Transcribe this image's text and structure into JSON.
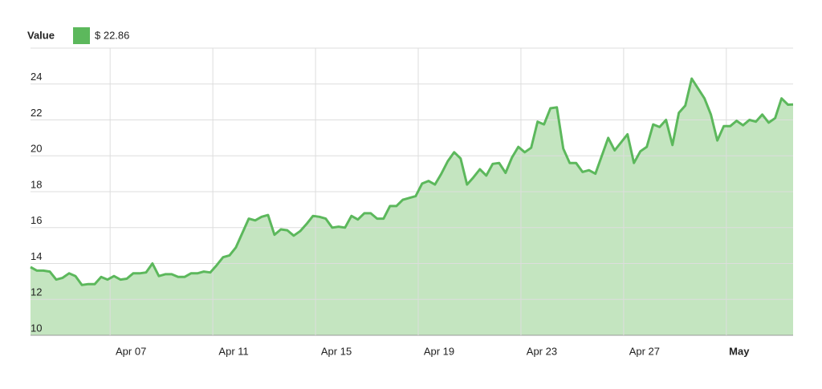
{
  "chart_data": {
    "type": "area",
    "legend_title": "Value",
    "latest_label": "$ 22.86",
    "series": [
      {
        "name": "Value",
        "color": "#5cb85c",
        "fill": "#c4e5c0",
        "values": [
          13.8,
          13.6,
          13.6,
          13.55,
          13.1,
          13.2,
          13.45,
          13.3,
          12.8,
          12.85,
          12.85,
          13.25,
          13.1,
          13.3,
          13.1,
          13.15,
          13.45,
          13.45,
          13.5,
          14.0,
          13.3,
          13.4,
          13.4,
          13.25,
          13.25,
          13.45,
          13.45,
          13.55,
          13.5,
          13.9,
          14.35,
          14.45,
          14.9,
          15.7,
          16.5,
          16.4,
          16.6,
          16.7,
          15.6,
          15.9,
          15.85,
          15.55,
          15.8,
          16.2,
          16.65,
          16.6,
          16.5,
          16.0,
          16.05,
          16.0,
          16.65,
          16.45,
          16.8,
          16.8,
          16.5,
          16.5,
          17.2,
          17.2,
          17.55,
          17.65,
          17.75,
          18.45,
          18.6,
          18.4,
          19.0,
          19.7,
          20.2,
          19.85,
          18.4,
          18.8,
          19.25,
          18.9,
          19.55,
          19.6,
          19.05,
          19.9,
          20.5,
          20.2,
          20.45,
          21.9,
          21.75,
          22.65,
          22.7,
          20.4,
          19.6,
          19.6,
          19.1,
          19.2,
          19.0,
          20.0,
          21.0,
          20.3,
          20.75,
          21.2,
          19.6,
          20.25,
          20.5,
          21.75,
          21.6,
          22.0,
          20.6,
          22.4,
          22.8,
          24.3,
          23.75,
          23.2,
          22.3,
          20.85,
          21.65,
          21.65,
          21.95,
          21.7,
          22.0,
          21.9,
          22.3,
          21.85,
          22.1,
          23.2,
          22.85,
          22.86
        ]
      }
    ],
    "x": [
      3.9,
      4.15,
      4.4,
      4.65,
      4.9,
      5.15,
      5.4,
      5.65,
      5.9,
      6.15,
      6.4,
      6.65,
      6.9,
      7.15,
      7.4,
      7.65,
      7.9,
      8.15,
      8.4,
      8.65,
      8.9,
      9.15,
      9.4,
      9.65,
      9.9,
      10.15,
      10.4,
      10.65,
      10.9,
      11.15,
      11.4,
      11.65,
      11.9,
      12.15,
      12.4,
      12.65,
      12.9,
      13.15,
      13.4,
      13.65,
      13.9,
      14.15,
      14.4,
      14.65,
      14.9,
      15.15,
      15.4,
      15.65,
      15.9,
      16.15,
      16.4,
      16.65,
      16.9,
      17.15,
      17.4,
      17.65,
      17.9,
      18.15,
      18.4,
      18.65,
      18.9,
      19.15,
      19.4,
      19.65,
      19.9,
      20.15,
      20.4,
      20.65,
      20.9,
      21.15,
      21.4,
      21.65,
      21.9,
      22.15,
      22.4,
      22.65,
      22.9,
      23.15,
      23.4,
      23.65,
      23.9,
      24.15,
      24.4,
      24.65,
      24.9,
      25.15,
      25.4,
      25.65,
      25.9,
      26.15,
      26.4,
      26.65,
      26.9,
      27.15,
      27.4,
      27.65,
      27.9,
      28.15,
      28.4,
      28.65,
      28.9,
      29.15,
      29.4,
      29.65,
      29.9,
      30.15,
      30.4,
      30.65,
      30.9,
      31.15,
      31.4,
      31.65,
      31.9,
      32.15,
      32.4,
      32.65,
      32.9,
      33.15,
      33.4,
      33.6
    ],
    "xlim": [
      3.9,
      33.6
    ],
    "xticks": [
      {
        "value": 7,
        "label": "Apr 07"
      },
      {
        "value": 11,
        "label": "Apr 11"
      },
      {
        "value": 15,
        "label": "Apr 15"
      },
      {
        "value": 19,
        "label": "Apr 19"
      },
      {
        "value": 23,
        "label": "Apr 23"
      },
      {
        "value": 27,
        "label": "Apr 27"
      },
      {
        "value": 31,
        "label": "May"
      }
    ],
    "ylim": [
      10,
      26
    ],
    "yticks": [
      10,
      12,
      14,
      16,
      18,
      20,
      22,
      24
    ],
    "grid": true
  }
}
